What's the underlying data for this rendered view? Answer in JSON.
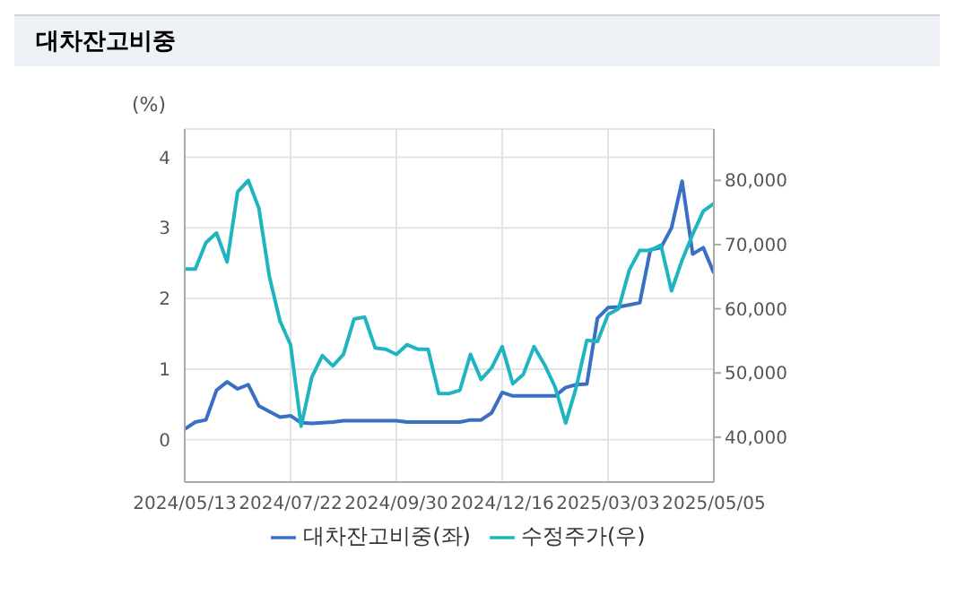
{
  "chart_data": {
    "type": "line",
    "title": "대차잔고비중",
    "ylabel": "(%)",
    "categories": [
      "2024/05/13",
      null,
      null,
      null,
      null,
      null,
      null,
      null,
      null,
      null,
      "2024/07/22",
      null,
      null,
      null,
      null,
      null,
      null,
      null,
      null,
      null,
      "2024/09/30",
      null,
      null,
      null,
      null,
      null,
      null,
      null,
      null,
      null,
      "2024/12/16",
      null,
      null,
      null,
      null,
      null,
      null,
      null,
      null,
      null,
      "2025/03/03",
      null,
      null,
      null,
      null,
      null,
      null,
      null,
      null,
      null,
      "2025/05/05"
    ],
    "series": [
      {
        "name": "대차잔고비중(좌)",
        "color": "#3a6fc4",
        "values": [
          0.15,
          0.25,
          0.28,
          0.7,
          0.82,
          0.72,
          0.78,
          0.48,
          0.4,
          0.32,
          0.34,
          0.24,
          0.23,
          0.24,
          0.25,
          0.27,
          0.27,
          0.27,
          0.27,
          0.27,
          0.27,
          0.25,
          0.25,
          0.25,
          0.25,
          0.25,
          0.25,
          0.28,
          0.28,
          0.38,
          0.67,
          0.62,
          0.62,
          0.62,
          0.62,
          0.62,
          0.74,
          0.78,
          0.79,
          1.72,
          1.87,
          1.88,
          1.91,
          1.94,
          2.69,
          2.72,
          3.0,
          3.66,
          2.63,
          2.72,
          2.36
        ]
      },
      {
        "name": "수정주가(우)",
        "color": "#1fb5c0",
        "axis": "y2",
        "values": [
          66200,
          66200,
          70300,
          71800,
          67300,
          78200,
          80000,
          75700,
          65000,
          58100,
          54400,
          41700,
          49300,
          52700,
          51100,
          52900,
          58400,
          58700,
          53900,
          53700,
          52900,
          54400,
          53700,
          53700,
          46800,
          46800,
          47300,
          52900,
          49000,
          50800,
          54100,
          48300,
          49800,
          54100,
          51300,
          47800,
          42200,
          47800,
          55100,
          54900,
          59100,
          60000,
          66000,
          69100,
          69100,
          69900,
          62800,
          67600,
          71600,
          75200,
          76400
        ]
      }
    ],
    "ylim": [
      -0.6,
      4.4
    ],
    "yticks": [
      0,
      1,
      2,
      3,
      4
    ],
    "y2lim": [
      33000,
      88000
    ],
    "y2ticks": [
      {
        "value": 40000,
        "label": "40,000"
      },
      {
        "value": 50000,
        "label": "50,000"
      },
      {
        "value": 60000,
        "label": "60,000"
      },
      {
        "value": 70000,
        "label": "70,000"
      },
      {
        "value": 80000,
        "label": "80,000"
      }
    ],
    "grid": true,
    "legend": "bottom",
    "marker": "none"
  }
}
